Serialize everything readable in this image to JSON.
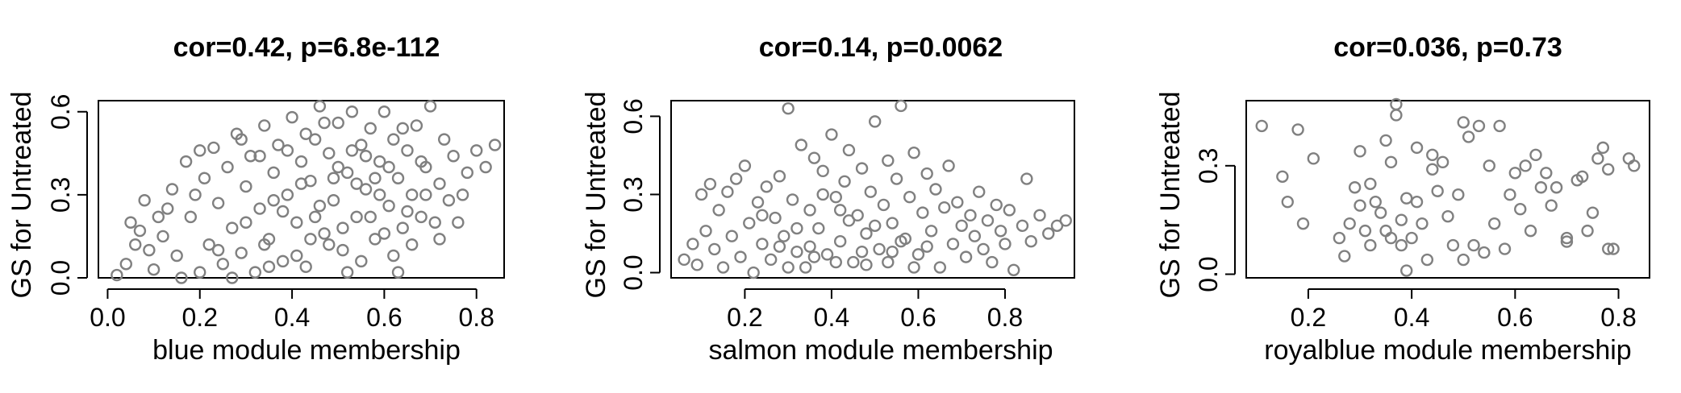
{
  "chart_data": [
    {
      "type": "scatter",
      "title": "cor=0.42, p=6.8e-112",
      "xlabel": "blue module membership",
      "ylabel": "GS for Untreated",
      "xlim": [
        -0.02,
        0.86
      ],
      "ylim": [
        0.0,
        0.64
      ],
      "xticks": [
        {
          "value": 0.0,
          "label": "0.0"
        },
        {
          "value": 0.2,
          "label": "0.2"
        },
        {
          "value": 0.4,
          "label": "0.4"
        },
        {
          "value": 0.6,
          "label": "0.6"
        },
        {
          "value": 0.8,
          "label": "0.8"
        }
      ],
      "yticks": [
        {
          "value": 0.0,
          "label": "0.0"
        },
        {
          "value": 0.3,
          "label": "0.3"
        },
        {
          "value": 0.6,
          "label": "0.6"
        }
      ],
      "point_color": "#808080",
      "points": [
        [
          0.02,
          0.01
        ],
        [
          0.04,
          0.05
        ],
        [
          0.06,
          0.12
        ],
        [
          0.05,
          0.2
        ],
        [
          0.08,
          0.28
        ],
        [
          0.1,
          0.03
        ],
        [
          0.12,
          0.15
        ],
        [
          0.14,
          0.32
        ],
        [
          0.15,
          0.08
        ],
        [
          0.17,
          0.42
        ],
        [
          0.18,
          0.22
        ],
        [
          0.2,
          0.02
        ],
        [
          0.21,
          0.36
        ],
        [
          0.22,
          0.12
        ],
        [
          0.23,
          0.47
        ],
        [
          0.24,
          0.27
        ],
        [
          0.25,
          0.05
        ],
        [
          0.26,
          0.4
        ],
        [
          0.27,
          0.18
        ],
        [
          0.28,
          0.52
        ],
        [
          0.29,
          0.09
        ],
        [
          0.3,
          0.33
        ],
        [
          0.31,
          0.44
        ],
        [
          0.32,
          0.02
        ],
        [
          0.33,
          0.25
        ],
        [
          0.34,
          0.55
        ],
        [
          0.35,
          0.14
        ],
        [
          0.36,
          0.38
        ],
        [
          0.37,
          0.48
        ],
        [
          0.38,
          0.06
        ],
        [
          0.39,
          0.3
        ],
        [
          0.4,
          0.58
        ],
        [
          0.41,
          0.2
        ],
        [
          0.42,
          0.42
        ],
        [
          0.43,
          0.04
        ],
        [
          0.44,
          0.35
        ],
        [
          0.45,
          0.5
        ],
        [
          0.46,
          0.62
        ],
        [
          0.47,
          0.16
        ],
        [
          0.48,
          0.45
        ],
        [
          0.49,
          0.28
        ],
        [
          0.5,
          0.56
        ],
        [
          0.51,
          0.1
        ],
        [
          0.52,
          0.38
        ],
        [
          0.53,
          0.6
        ],
        [
          0.54,
          0.22
        ],
        [
          0.55,
          0.48
        ],
        [
          0.56,
          0.32
        ],
        [
          0.57,
          0.54
        ],
        [
          0.58,
          0.14
        ],
        [
          0.59,
          0.42
        ],
        [
          0.6,
          0.6
        ],
        [
          0.61,
          0.26
        ],
        [
          0.62,
          0.5
        ],
        [
          0.63,
          0.36
        ],
        [
          0.64,
          0.18
        ],
        [
          0.65,
          0.46
        ],
        [
          0.66,
          0.3
        ],
        [
          0.67,
          0.55
        ],
        [
          0.68,
          0.22
        ],
        [
          0.69,
          0.4
        ],
        [
          0.7,
          0.62
        ],
        [
          0.72,
          0.34
        ],
        [
          0.73,
          0.5
        ],
        [
          0.74,
          0.28
        ],
        [
          0.75,
          0.44
        ],
        [
          0.76,
          0.2
        ],
        [
          0.78,
          0.38
        ],
        [
          0.8,
          0.46
        ],
        [
          0.82,
          0.4
        ],
        [
          0.84,
          0.48
        ],
        [
          0.19,
          0.3
        ],
        [
          0.27,
          0.0
        ],
        [
          0.33,
          0.44
        ],
        [
          0.38,
          0.24
        ],
        [
          0.43,
          0.52
        ],
        [
          0.48,
          0.12
        ],
        [
          0.52,
          0.02
        ],
        [
          0.57,
          0.22
        ],
        [
          0.61,
          0.4
        ],
        [
          0.64,
          0.54
        ],
        [
          0.66,
          0.12
        ],
        [
          0.69,
          0.3
        ],
        [
          0.71,
          0.2
        ],
        [
          0.24,
          0.1
        ],
        [
          0.35,
          0.04
        ],
        [
          0.41,
          0.08
        ],
        [
          0.46,
          0.26
        ],
        [
          0.5,
          0.4
        ],
        [
          0.55,
          0.06
        ],
        [
          0.59,
          0.3
        ],
        [
          0.63,
          0.02
        ],
        [
          0.13,
          0.25
        ],
        [
          0.11,
          0.22
        ],
        [
          0.09,
          0.1
        ],
        [
          0.07,
          0.17
        ],
        [
          0.16,
          0.0
        ],
        [
          0.2,
          0.46
        ],
        [
          0.29,
          0.5
        ],
        [
          0.34,
          0.12
        ],
        [
          0.39,
          0.46
        ],
        [
          0.44,
          0.14
        ],
        [
          0.47,
          0.56
        ],
        [
          0.53,
          0.46
        ],
        [
          0.58,
          0.36
        ],
        [
          0.62,
          0.08
        ],
        [
          0.68,
          0.42
        ],
        [
          0.72,
          0.14
        ],
        [
          0.77,
          0.3
        ],
        [
          0.3,
          0.2
        ],
        [
          0.36,
          0.28
        ],
        [
          0.42,
          0.34
        ],
        [
          0.45,
          0.22
        ],
        [
          0.49,
          0.36
        ],
        [
          0.51,
          0.18
        ],
        [
          0.54,
          0.34
        ],
        [
          0.56,
          0.44
        ],
        [
          0.6,
          0.16
        ],
        [
          0.65,
          0.24
        ]
      ]
    },
    {
      "type": "scatter",
      "title": "cor=0.14, p=0.0062",
      "xlabel": "salmon module membership",
      "ylabel": "GS for Untreated",
      "xlim": [
        0.03,
        0.96
      ],
      "ylim": [
        -0.02,
        0.66
      ],
      "xticks": [
        {
          "value": 0.2,
          "label": "0.2"
        },
        {
          "value": 0.4,
          "label": "0.4"
        },
        {
          "value": 0.6,
          "label": "0.6"
        },
        {
          "value": 0.8,
          "label": "0.8"
        }
      ],
      "yticks": [
        {
          "value": 0.0,
          "label": "0.0"
        },
        {
          "value": 0.3,
          "label": "0.3"
        },
        {
          "value": 0.6,
          "label": "0.6"
        }
      ],
      "point_color": "#808080",
      "points": [
        [
          0.06,
          0.05
        ],
        [
          0.08,
          0.11
        ],
        [
          0.09,
          0.03
        ],
        [
          0.1,
          0.3
        ],
        [
          0.11,
          0.16
        ],
        [
          0.12,
          0.34
        ],
        [
          0.13,
          0.09
        ],
        [
          0.14,
          0.24
        ],
        [
          0.15,
          0.02
        ],
        [
          0.16,
          0.31
        ],
        [
          0.17,
          0.14
        ],
        [
          0.18,
          0.36
        ],
        [
          0.19,
          0.06
        ],
        [
          0.2,
          0.41
        ],
        [
          0.21,
          0.19
        ],
        [
          0.22,
          0.0
        ],
        [
          0.23,
          0.27
        ],
        [
          0.24,
          0.11
        ],
        [
          0.25,
          0.33
        ],
        [
          0.26,
          0.05
        ],
        [
          0.27,
          0.21
        ],
        [
          0.28,
          0.37
        ],
        [
          0.29,
          0.14
        ],
        [
          0.3,
          0.63
        ],
        [
          0.31,
          0.28
        ],
        [
          0.32,
          0.08
        ],
        [
          0.33,
          0.49
        ],
        [
          0.34,
          0.02
        ],
        [
          0.35,
          0.24
        ],
        [
          0.36,
          0.44
        ],
        [
          0.37,
          0.17
        ],
        [
          0.38,
          0.39
        ],
        [
          0.39,
          0.07
        ],
        [
          0.4,
          0.53
        ],
        [
          0.41,
          0.29
        ],
        [
          0.42,
          0.12
        ],
        [
          0.43,
          0.35
        ],
        [
          0.44,
          0.47
        ],
        [
          0.45,
          0.04
        ],
        [
          0.46,
          0.22
        ],
        [
          0.47,
          0.4
        ],
        [
          0.48,
          0.15
        ],
        [
          0.49,
          0.31
        ],
        [
          0.5,
          0.58
        ],
        [
          0.51,
          0.09
        ],
        [
          0.52,
          0.26
        ],
        [
          0.53,
          0.43
        ],
        [
          0.54,
          0.19
        ],
        [
          0.55,
          0.36
        ],
        [
          0.56,
          0.64
        ],
        [
          0.57,
          0.13
        ],
        [
          0.58,
          0.29
        ],
        [
          0.59,
          0.46
        ],
        [
          0.6,
          0.07
        ],
        [
          0.61,
          0.23
        ],
        [
          0.62,
          0.38
        ],
        [
          0.63,
          0.16
        ],
        [
          0.64,
          0.32
        ],
        [
          0.65,
          0.02
        ],
        [
          0.66,
          0.25
        ],
        [
          0.67,
          0.41
        ],
        [
          0.68,
          0.11
        ],
        [
          0.69,
          0.27
        ],
        [
          0.7,
          0.18
        ],
        [
          0.71,
          0.06
        ],
        [
          0.72,
          0.22
        ],
        [
          0.73,
          0.14
        ],
        [
          0.74,
          0.31
        ],
        [
          0.75,
          0.09
        ],
        [
          0.76,
          0.2
        ],
        [
          0.77,
          0.04
        ],
        [
          0.78,
          0.26
        ],
        [
          0.79,
          0.16
        ],
        [
          0.8,
          0.11
        ],
        [
          0.81,
          0.24
        ],
        [
          0.82,
          0.01
        ],
        [
          0.84,
          0.18
        ],
        [
          0.85,
          0.36
        ],
        [
          0.86,
          0.12
        ],
        [
          0.88,
          0.22
        ],
        [
          0.9,
          0.15
        ],
        [
          0.92,
          0.18
        ],
        [
          0.94,
          0.2
        ],
        [
          0.24,
          0.22
        ],
        [
          0.3,
          0.02
        ],
        [
          0.35,
          0.1
        ],
        [
          0.38,
          0.3
        ],
        [
          0.41,
          0.04
        ],
        [
          0.44,
          0.2
        ],
        [
          0.47,
          0.08
        ],
        [
          0.5,
          0.18
        ],
        [
          0.53,
          0.04
        ],
        [
          0.56,
          0.12
        ],
        [
          0.59,
          0.02
        ],
        [
          0.62,
          0.1
        ],
        [
          0.36,
          0.06
        ],
        [
          0.42,
          0.24
        ],
        [
          0.48,
          0.03
        ],
        [
          0.54,
          0.08
        ],
        [
          0.28,
          0.1
        ],
        [
          0.32,
          0.17
        ]
      ]
    },
    {
      "type": "scatter",
      "title": "cor=0.036, p=0.73",
      "xlabel": "royalblue module membership",
      "ylabel": "GS for Untreated",
      "xlim": [
        0.08,
        0.86
      ],
      "ylim": [
        -0.01,
        0.48
      ],
      "xticks": [
        {
          "value": 0.2,
          "label": "0.2"
        },
        {
          "value": 0.4,
          "label": "0.4"
        },
        {
          "value": 0.6,
          "label": "0.6"
        },
        {
          "value": 0.8,
          "label": "0.8"
        }
      ],
      "yticks": [
        {
          "value": 0.0,
          "label": "0.0"
        },
        {
          "value": 0.3,
          "label": "0.3"
        }
      ],
      "point_color": "#808080",
      "points": [
        [
          0.11,
          0.41
        ],
        [
          0.15,
          0.27
        ],
        [
          0.16,
          0.2
        ],
        [
          0.18,
          0.4
        ],
        [
          0.19,
          0.14
        ],
        [
          0.21,
          0.32
        ],
        [
          0.26,
          0.1
        ],
        [
          0.27,
          0.05
        ],
        [
          0.28,
          0.14
        ],
        [
          0.29,
          0.24
        ],
        [
          0.3,
          0.34
        ],
        [
          0.3,
          0.19
        ],
        [
          0.31,
          0.12
        ],
        [
          0.32,
          0.08
        ],
        [
          0.32,
          0.25
        ],
        [
          0.33,
          0.2
        ],
        [
          0.34,
          0.17
        ],
        [
          0.35,
          0.12
        ],
        [
          0.35,
          0.37
        ],
        [
          0.36,
          0.31
        ],
        [
          0.36,
          0.1
        ],
        [
          0.37,
          0.44
        ],
        [
          0.37,
          0.47
        ],
        [
          0.38,
          0.08
        ],
        [
          0.38,
          0.15
        ],
        [
          0.39,
          0.01
        ],
        [
          0.39,
          0.21
        ],
        [
          0.4,
          0.1
        ],
        [
          0.41,
          0.2
        ],
        [
          0.41,
          0.35
        ],
        [
          0.42,
          0.14
        ],
        [
          0.43,
          0.04
        ],
        [
          0.44,
          0.33
        ],
        [
          0.44,
          0.29
        ],
        [
          0.45,
          0.23
        ],
        [
          0.46,
          0.31
        ],
        [
          0.47,
          0.16
        ],
        [
          0.48,
          0.08
        ],
        [
          0.49,
          0.22
        ],
        [
          0.5,
          0.04
        ],
        [
          0.5,
          0.42
        ],
        [
          0.51,
          0.38
        ],
        [
          0.52,
          0.08
        ],
        [
          0.53,
          0.41
        ],
        [
          0.54,
          0.06
        ],
        [
          0.55,
          0.3
        ],
        [
          0.56,
          0.14
        ],
        [
          0.57,
          0.41
        ],
        [
          0.58,
          0.07
        ],
        [
          0.59,
          0.22
        ],
        [
          0.6,
          0.28
        ],
        [
          0.61,
          0.18
        ],
        [
          0.62,
          0.3
        ],
        [
          0.63,
          0.12
        ],
        [
          0.64,
          0.33
        ],
        [
          0.65,
          0.24
        ],
        [
          0.66,
          0.28
        ],
        [
          0.67,
          0.19
        ],
        [
          0.68,
          0.24
        ],
        [
          0.7,
          0.09
        ],
        [
          0.7,
          0.1
        ],
        [
          0.72,
          0.26
        ],
        [
          0.73,
          0.27
        ],
        [
          0.74,
          0.12
        ],
        [
          0.75,
          0.17
        ],
        [
          0.76,
          0.32
        ],
        [
          0.77,
          0.35
        ],
        [
          0.78,
          0.07
        ],
        [
          0.78,
          0.29
        ],
        [
          0.79,
          0.07
        ],
        [
          0.82,
          0.32
        ],
        [
          0.83,
          0.3
        ]
      ]
    }
  ]
}
